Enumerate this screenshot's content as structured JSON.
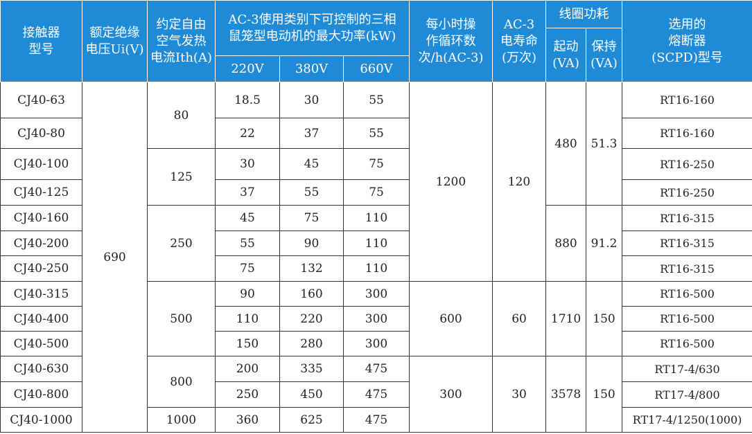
{
  "table": {
    "header": {
      "model": [
        "接触器",
        "型号"
      ],
      "voltage": [
        "额定绝缘",
        "电压Ui(V)"
      ],
      "ith": [
        "约定自由",
        "空气发热",
        "电流Ith(A)"
      ],
      "power": [
        "AC-3使用类别下可控制的三相",
        "鼠笼型电动机的最大功率(kW)"
      ],
      "power_sub": [
        "220V",
        "380V",
        "660V"
      ],
      "cycles": [
        "每小时操",
        "作循环数",
        "次/h(AC-3)"
      ],
      "life": [
        "AC-3",
        "电寿命",
        "(万次)"
      ],
      "coil": "线圈功耗",
      "coil_sub": [
        [
          "起动",
          "(VA)"
        ],
        [
          "保持",
          "(VA)"
        ]
      ],
      "fuse": [
        "选用的",
        "熔断器",
        "(SCPD)型号"
      ]
    },
    "rows": [
      {
        "model": "CJ40-63",
        "power": [
          18.5,
          30,
          55
        ],
        "fuse": "RT16-160"
      },
      {
        "model": "CJ40-80",
        "power": [
          22,
          37,
          55
        ],
        "fuse": "RT16-160"
      },
      {
        "model": "CJ40-100",
        "power": [
          30,
          45,
          75
        ],
        "fuse": "RT16-250"
      },
      {
        "model": "CJ40-125",
        "power": [
          37,
          55,
          75
        ],
        "fuse": "RT16-250"
      },
      {
        "model": "CJ40-160",
        "power": [
          45,
          75,
          110
        ],
        "fuse": "RT16-315"
      },
      {
        "model": "CJ40-200",
        "power": [
          55,
          90,
          110
        ],
        "fuse": "RT16-315"
      },
      {
        "model": "CJ40-250",
        "power": [
          75,
          132,
          110
        ],
        "fuse": "RT16-315"
      },
      {
        "model": "CJ40-315",
        "power": [
          90,
          160,
          300
        ],
        "fuse": "RT16-500"
      },
      {
        "model": "CJ40-400",
        "power": [
          110,
          220,
          300
        ],
        "fuse": "RT16-500"
      },
      {
        "model": "CJ40-500",
        "power": [
          150,
          280,
          300
        ],
        "fuse": "RT16-500"
      },
      {
        "model": "CJ40-630",
        "power": [
          200,
          335,
          475
        ],
        "fuse": "RT17-4/630"
      },
      {
        "model": "CJ40-800",
        "power": [
          250,
          450,
          475
        ],
        "fuse": "RT17-4/800"
      },
      {
        "model": "CJ40-1000",
        "power": [
          360,
          625,
          475
        ],
        "fuse": "RT17-4/1250(1000)"
      }
    ],
    "voltage": [
      690
    ],
    "ith": [
      80,
      125,
      250,
      500,
      800,
      1000
    ],
    "cycles": [
      1200,
      600,
      300
    ],
    "life": [
      120,
      60,
      30
    ],
    "coil_start": [
      480,
      880,
      1710,
      3578
    ],
    "coil_hold": [
      51.3,
      91.2,
      150,
      150
    ]
  }
}
